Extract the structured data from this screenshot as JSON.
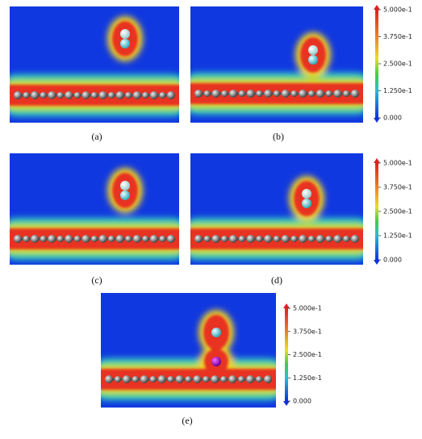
{
  "panels": [
    {
      "label": "(a)"
    },
    {
      "label": "(b)"
    },
    {
      "label": "(c)"
    },
    {
      "label": "(d)"
    },
    {
      "label": "(e)"
    }
  ],
  "colorbars": [
    {
      "ticks": [
        "5.000e-1",
        "3.750e-1",
        "2.500e-1",
        "1.250e-1",
        "0.000"
      ]
    },
    {
      "ticks": [
        "5.000e-1",
        "3.750e-1",
        "2.500e-1",
        "1.250e-1",
        "0.000"
      ]
    },
    {
      "ticks": [
        "5.000e-1",
        "3.750e-1",
        "2.500e-1",
        "1.250e-1",
        "0.000"
      ]
    }
  ]
}
